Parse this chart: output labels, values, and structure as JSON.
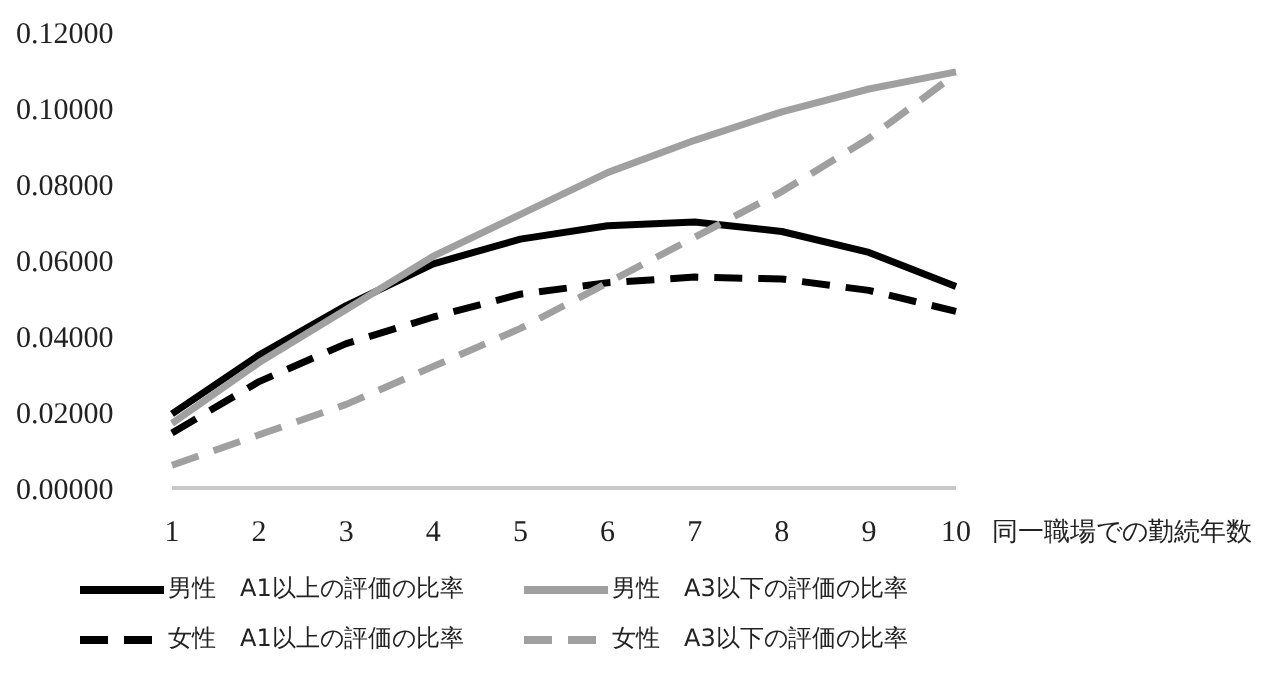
{
  "chart_data": {
    "type": "line",
    "xlabel": "同一職場での勤続年数",
    "categories": [
      "1",
      "2",
      "3",
      "4",
      "5",
      "6",
      "7",
      "8",
      "9",
      "10"
    ],
    "series": [
      {
        "name": "男性　A1以上の評価の比率",
        "color": "#000000",
        "line_style": "solid",
        "values": [
          0.0195,
          0.035,
          0.048,
          0.059,
          0.0655,
          0.069,
          0.07,
          0.0675,
          0.062,
          0.053
        ]
      },
      {
        "name": "男性　A3以下の評価の比率",
        "color": "#a0a0a0",
        "line_style": "solid",
        "values": [
          0.017,
          0.033,
          0.047,
          0.061,
          0.072,
          0.083,
          0.0915,
          0.099,
          0.105,
          0.1095
        ]
      },
      {
        "name": "女性　A1以上の評価の比率",
        "color": "#000000",
        "line_style": "dashed",
        "values": [
          0.0145,
          0.028,
          0.038,
          0.045,
          0.051,
          0.054,
          0.0555,
          0.055,
          0.052,
          0.0465
        ]
      },
      {
        "name": "女性　A3以下の評価の比率",
        "color": "#a0a0a0",
        "line_style": "dashed",
        "values": [
          0.006,
          0.014,
          0.022,
          0.032,
          0.042,
          0.054,
          0.066,
          0.078,
          0.092,
          0.109
        ]
      }
    ],
    "ylim": [
      0,
      0.12
    ],
    "yticks": [
      {
        "value": 0,
        "label": "0.00000"
      },
      {
        "value": 0.02,
        "label": "0.02000"
      },
      {
        "value": 0.04,
        "label": "0.04000"
      },
      {
        "value": 0.06,
        "label": "0.06000"
      },
      {
        "value": 0.08,
        "label": "0.08000"
      },
      {
        "value": 0.1,
        "label": "0.10000"
      },
      {
        "value": 0.12,
        "label": "0.12000"
      }
    ],
    "grid": false,
    "legend": "bottom left",
    "marker": "none"
  }
}
